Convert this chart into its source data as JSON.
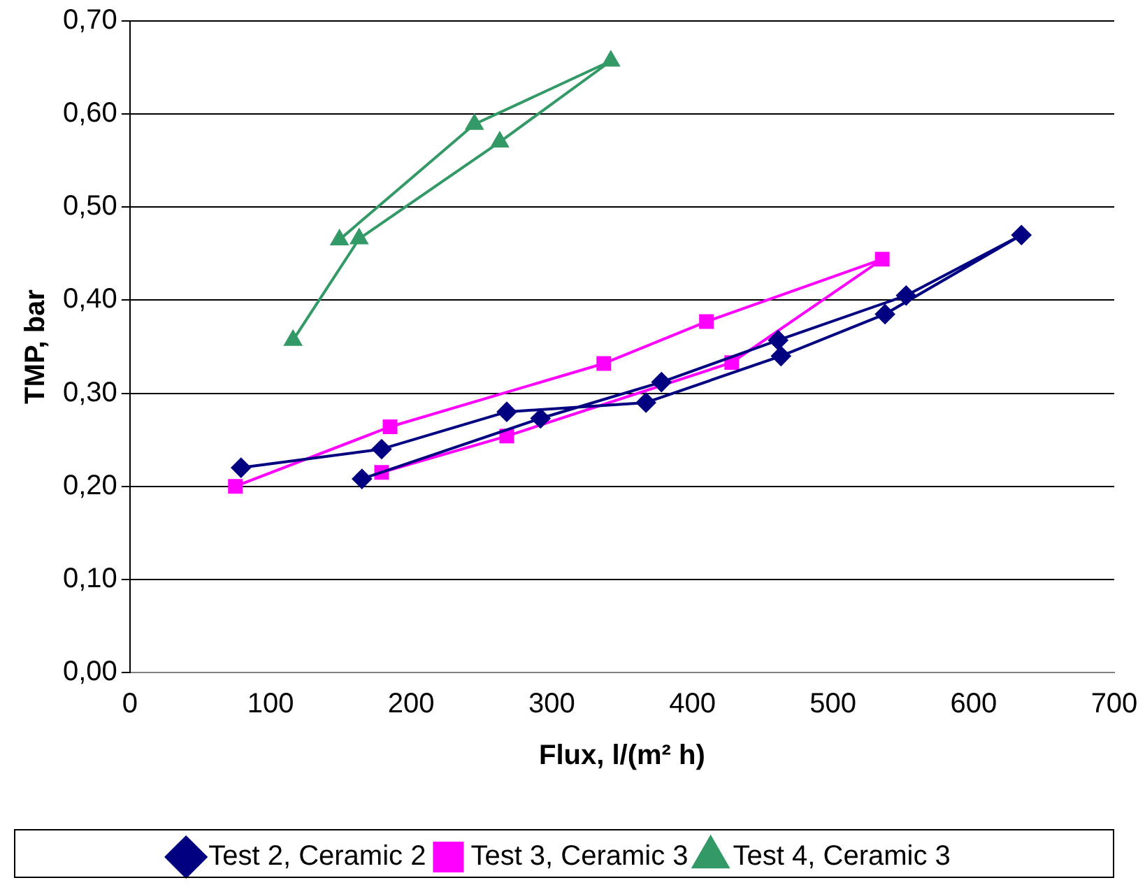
{
  "chart_data": {
    "type": "line",
    "xlabel": "Flux, l/(m² h)",
    "ylabel": "TMP, bar",
    "xlim": [
      0,
      700
    ],
    "xticks": [
      0,
      100,
      200,
      300,
      400,
      500,
      600,
      700
    ],
    "ylim": [
      0,
      0.7
    ],
    "yticks": [
      {
        "value": 0,
        "label": "0,00"
      },
      {
        "value": 0.1,
        "label": "0,10"
      },
      {
        "value": 0.2,
        "label": "0,20"
      },
      {
        "value": 0.3,
        "label": "0,30"
      },
      {
        "value": 0.4,
        "label": "0,40"
      },
      {
        "value": 0.5,
        "label": "0,50"
      },
      {
        "value": 0.6,
        "label": "0,60"
      },
      {
        "value": 0.7,
        "label": "0,70"
      }
    ],
    "grid": "y",
    "legend": "bottom",
    "series": [
      {
        "name": "Test 2, Ceramic 2",
        "color": "#000080",
        "marker": "diamond",
        "x": [
          79,
          179,
          268,
          367,
          463,
          537,
          634,
          552,
          461,
          378,
          292,
          165
        ],
        "values": [
          0.22,
          0.24,
          0.28,
          0.29,
          0.34,
          0.385,
          0.47,
          0.405,
          0.357,
          0.312,
          0.273,
          0.208
        ]
      },
      {
        "name": "Test 3, Ceramic 3",
        "color": "#ff00ff",
        "marker": "square",
        "x": [
          75,
          185,
          337,
          410,
          535,
          428,
          268,
          179
        ],
        "values": [
          0.2,
          0.264,
          0.332,
          0.377,
          0.444,
          0.333,
          0.254,
          0.215
        ]
      },
      {
        "name": "Test 4, Ceramic 3",
        "color": "#339966",
        "marker": "triangle",
        "x": [
          116,
          163,
          263,
          342,
          245,
          149
        ],
        "values": [
          0.357,
          0.466,
          0.57,
          0.657,
          0.589,
          0.465
        ]
      }
    ]
  }
}
